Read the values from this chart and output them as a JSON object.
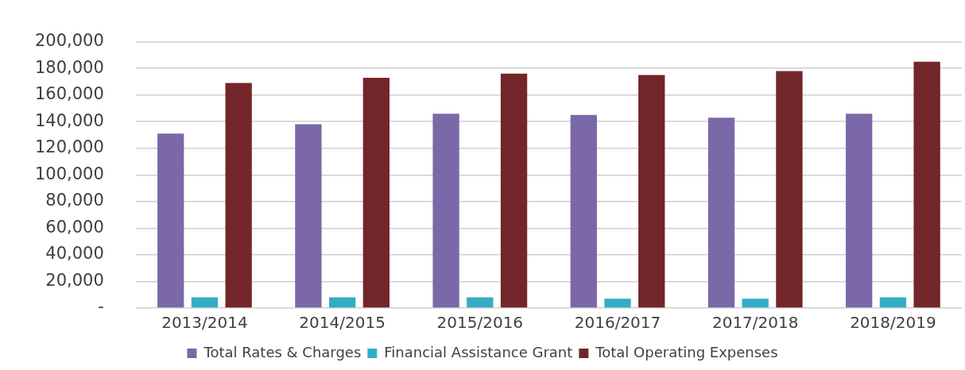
{
  "chart_data": {
    "type": "bar",
    "categories": [
      "2013/2014",
      "2014/2015",
      "2015/2016",
      "2016/2017",
      "2017/2018",
      "2018/2019"
    ],
    "series": [
      {
        "name": "Total Rates & Charges",
        "color": "#7b68a8",
        "values": [
          131000,
          138000,
          146000,
          145000,
          143000,
          146000
        ]
      },
      {
        "name": "Financial Assistance Grant",
        "color": "#31adc6",
        "values": [
          8000,
          8000,
          8000,
          7000,
          7000,
          8000
        ]
      },
      {
        "name": "Total Operating Expenses",
        "color": "#73262a",
        "values": [
          169000,
          173000,
          176000,
          175000,
          178000,
          185000
        ]
      }
    ],
    "ylim": [
      0,
      200000
    ],
    "yticks": [
      {
        "value": 0,
        "label": "-"
      },
      {
        "value": 20000,
        "label": "20,000"
      },
      {
        "value": 40000,
        "label": "40,000"
      },
      {
        "value": 60000,
        "label": "60,000"
      },
      {
        "value": 80000,
        "label": "80,000"
      },
      {
        "value": 100000,
        "label": "100,000"
      },
      {
        "value": 120000,
        "label": "120,000"
      },
      {
        "value": 140000,
        "label": "140,000"
      },
      {
        "value": 160000,
        "label": "160,000"
      },
      {
        "value": 180000,
        "label": "180,000"
      },
      {
        "value": 200000,
        "label": "200,000"
      }
    ],
    "grid": "y",
    "legend": "bottom"
  }
}
